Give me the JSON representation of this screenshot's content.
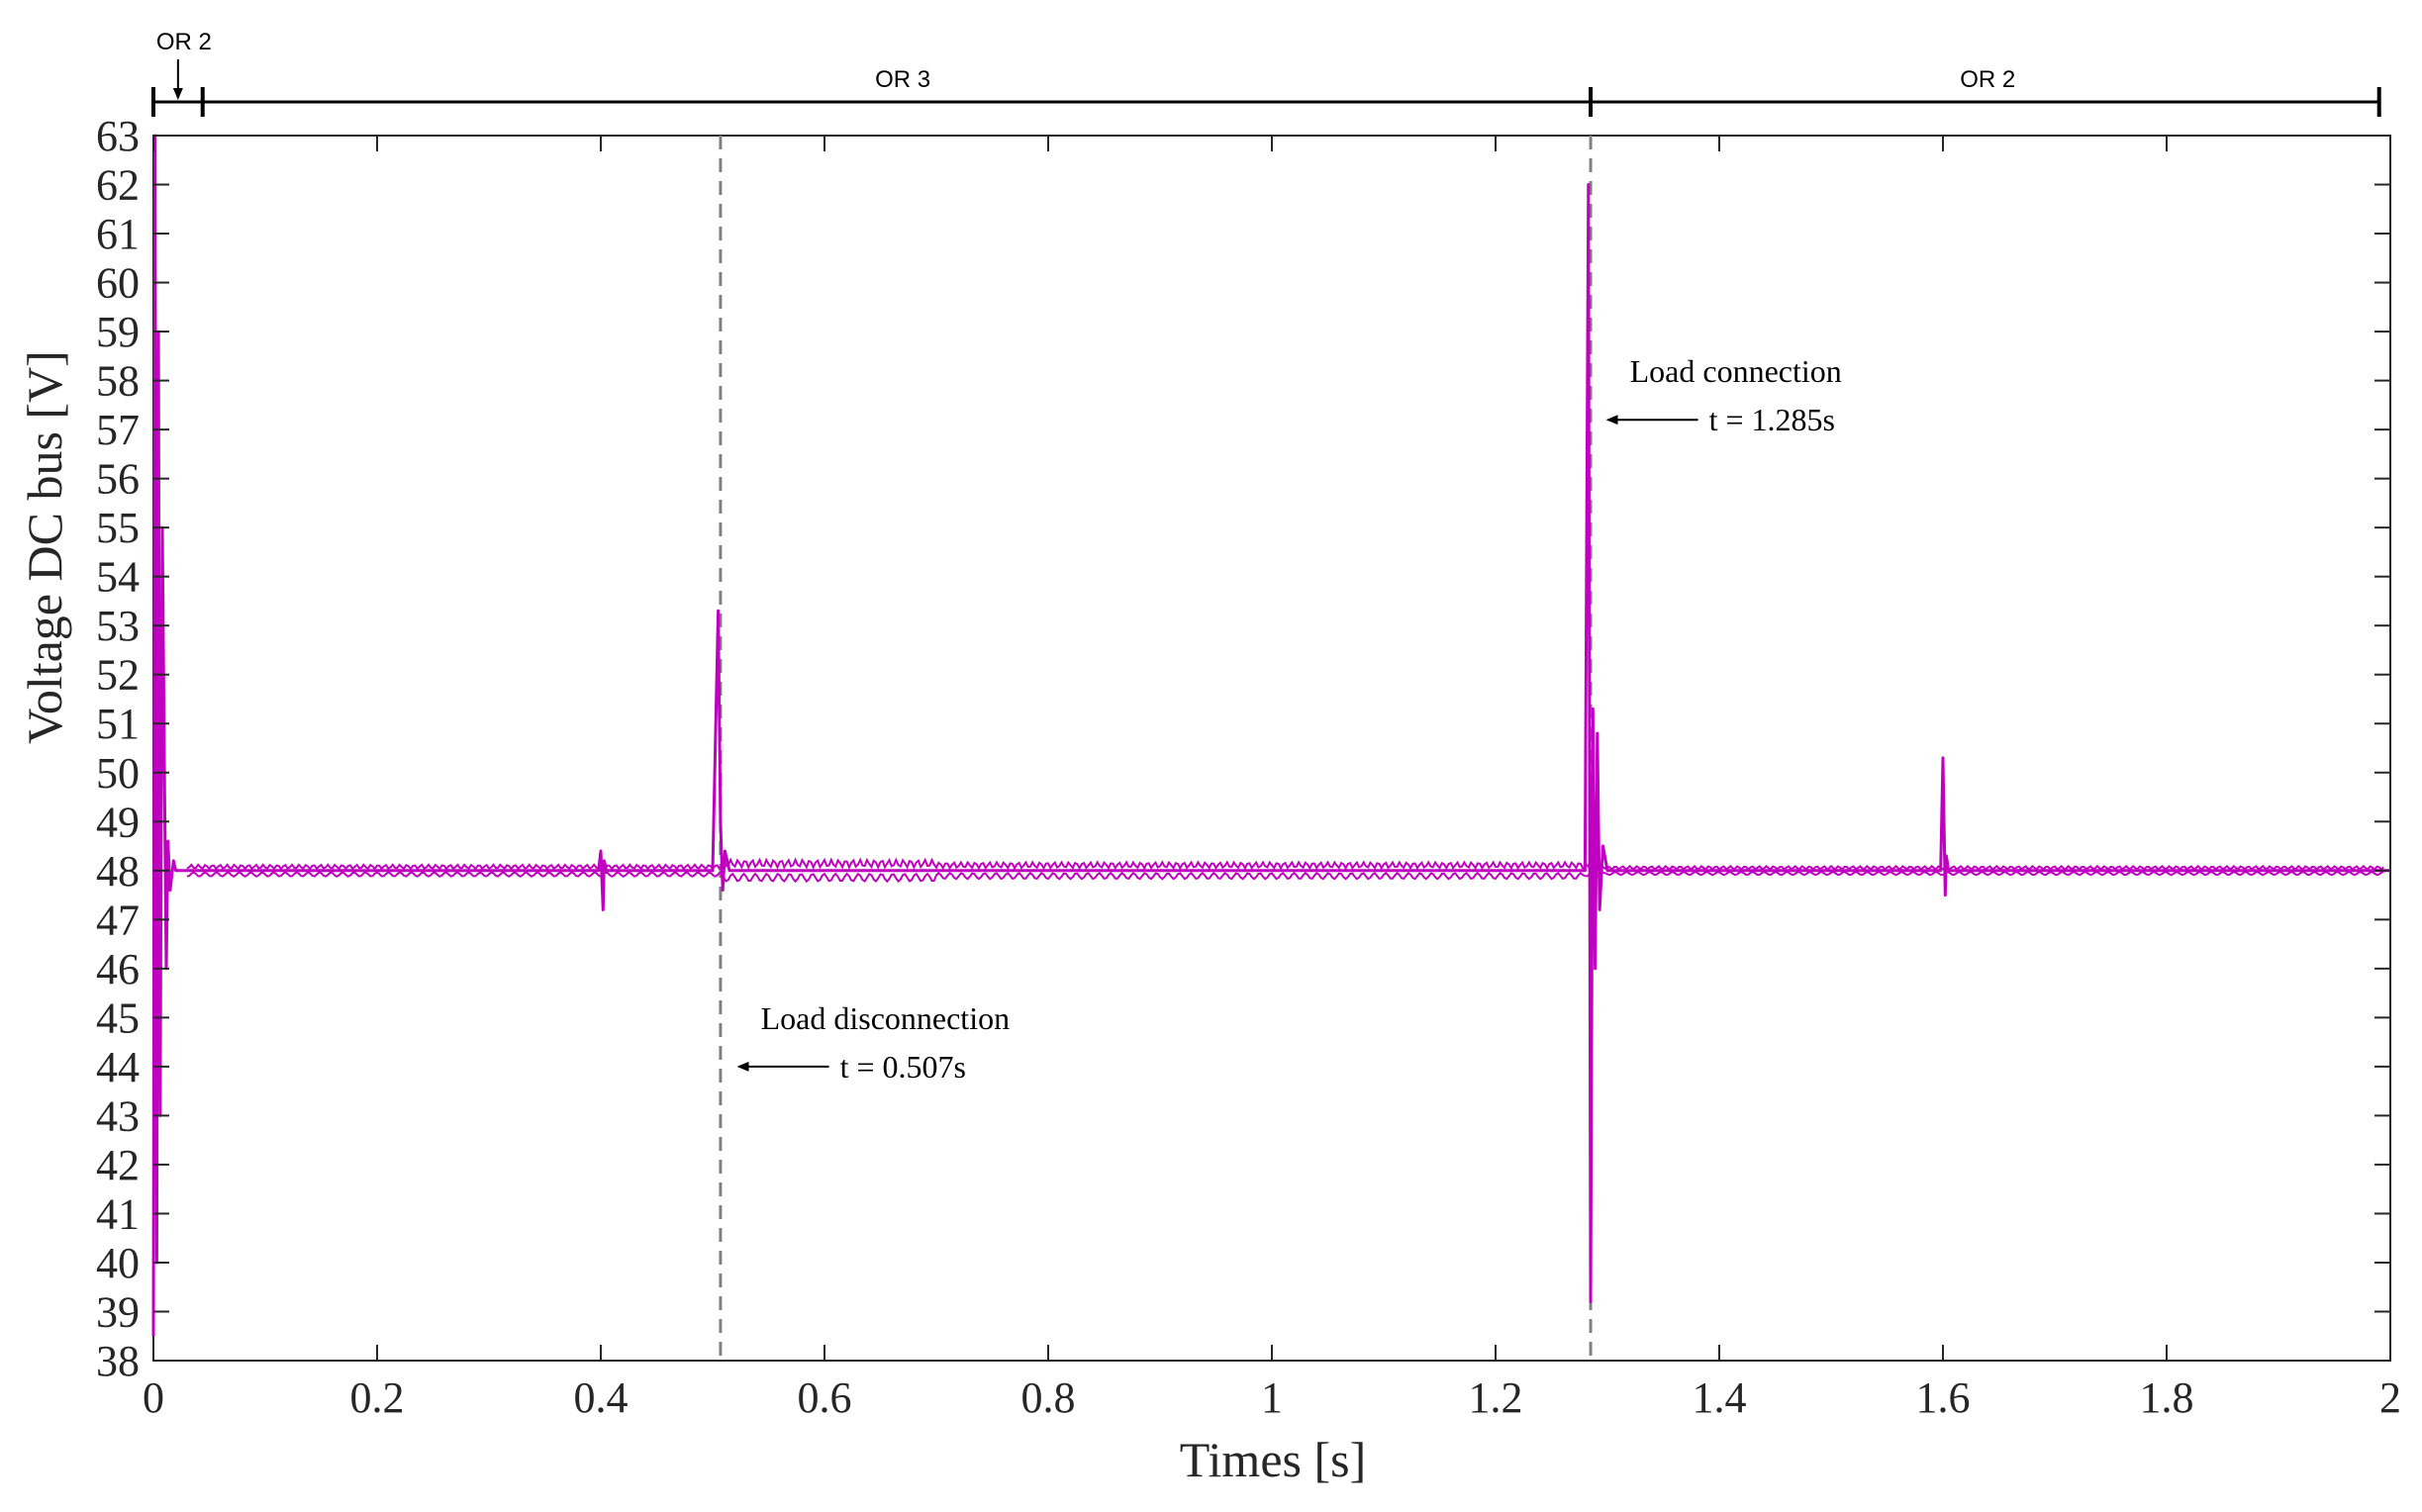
{
  "chart_data": {
    "type": "line",
    "xlabel": "Times [s]",
    "ylabel": "Voltage DC bus [V]",
    "xlim": [
      0,
      2
    ],
    "ylim": [
      38,
      63
    ],
    "x_ticks": [
      0,
      0.2,
      0.4,
      0.6,
      0.8,
      1,
      1.2,
      1.4,
      1.6,
      1.8,
      2
    ],
    "x_tick_labels": [
      "0",
      "0.2",
      "0.4",
      "0.6",
      "0.8",
      "1",
      "1.2",
      "1.4",
      "1.6",
      "1.8",
      "2"
    ],
    "y_ticks": [
      38,
      39,
      40,
      41,
      42,
      43,
      44,
      45,
      46,
      47,
      48,
      49,
      50,
      51,
      52,
      53,
      54,
      55,
      56,
      57,
      58,
      59,
      60,
      61,
      62,
      63
    ],
    "y_tick_labels": [
      "38",
      "39",
      "40",
      "41",
      "42",
      "43",
      "44",
      "45",
      "46",
      "47",
      "48",
      "49",
      "50",
      "51",
      "52",
      "53",
      "54",
      "55",
      "56",
      "57",
      "58",
      "59",
      "60",
      "61",
      "62",
      "63"
    ],
    "grid": false,
    "series": [
      {
        "color": "#c000c0",
        "x": [
          0,
          0.0015,
          0.003,
          0.0045,
          0.006,
          0.008,
          0.01,
          0.0115,
          0.013,
          0.015,
          0.018,
          0.02,
          0.03,
          0.1,
          0.2,
          0.3,
          0.398,
          0.4,
          0.402,
          0.403,
          0.405,
          0.41,
          0.5,
          0.505,
          0.507,
          0.509,
          0.511,
          0.515,
          0.52,
          0.6,
          0.7,
          0.8,
          0.9,
          1.0,
          1.1,
          1.2,
          1.28,
          1.283,
          1.285,
          1.287,
          1.289,
          1.291,
          1.293,
          1.296,
          1.3,
          1.4,
          1.5,
          1.598,
          1.6,
          1.602,
          1.603,
          1.605,
          1.61,
          1.7,
          1.8,
          1.9,
          2.0
        ],
        "y": [
          38.5,
          63,
          40,
          59,
          43,
          55,
          49.6,
          46,
          48.6,
          47.6,
          48.2,
          48,
          48,
          48,
          48,
          48,
          48,
          48.4,
          47.2,
          48.2,
          48,
          48,
          48,
          53.3,
          49,
          47.6,
          48.4,
          48,
          48,
          48,
          48,
          48,
          48,
          48,
          48,
          48,
          48,
          62,
          39.2,
          51.3,
          46,
          50.8,
          47.2,
          48.5,
          48,
          48,
          48,
          48,
          50.3,
          47.5,
          48.3,
          48,
          48,
          48,
          48,
          48,
          48
        ]
      }
    ],
    "event_lines": [
      {
        "x": 0.507,
        "style": "dashed",
        "color": "#808080"
      },
      {
        "x": 1.285,
        "style": "dashed",
        "color": "#808080"
      }
    ],
    "annotations": [
      {
        "line1": "Load disconnection",
        "line2": "t = 0.507s",
        "arrow_x": 0.52,
        "arrow_y": 44
      },
      {
        "line1": "Load connection",
        "line2": "t = 1.285s",
        "arrow_x": 1.297,
        "arrow_y": 57.2
      }
    ],
    "mode_bar": {
      "boundaries": [
        0,
        0.044,
        1.285,
        1.99
      ],
      "labels": [
        {
          "text": "OR 2",
          "x": 0.025,
          "arrow_x": 0.022
        },
        {
          "text": "OR 3",
          "x": 0.67
        },
        {
          "text": "OR 2",
          "x": 1.64
        }
      ]
    }
  }
}
